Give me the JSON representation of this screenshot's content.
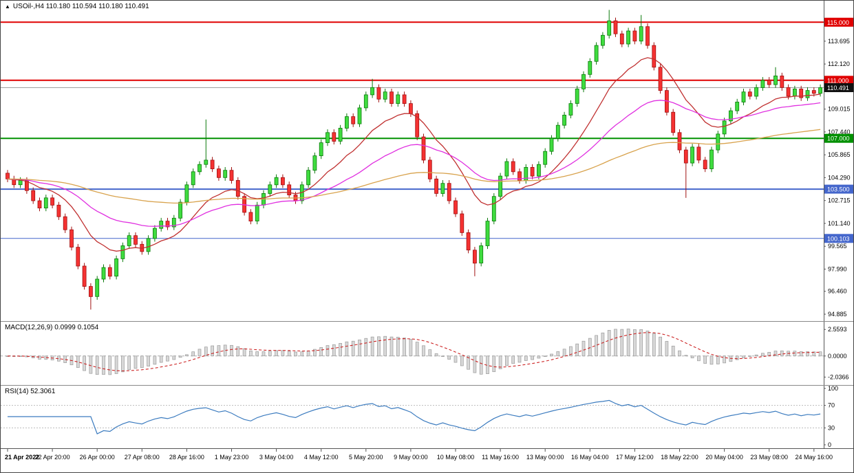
{
  "header": {
    "expander": "▲",
    "title_text": "USOil-,H4 110.180 110.594 110.180 110.491",
    "symbol": "USOil-",
    "timeframe": "H4",
    "open": "110.180",
    "high": "110.594",
    "low": "110.180",
    "close": "110.491"
  },
  "macd_panel": {
    "label_text": "MACD(12,26,9) 0.0999 0.1054",
    "ticks": [
      {
        "v": 2.5593,
        "t": "2.5593"
      },
      {
        "v": 0,
        "t": "0.0000"
      },
      {
        "v": -2.0366,
        "t": "-2.0366"
      }
    ],
    "ylim": [
      -2.6,
      3.1
    ]
  },
  "rsi_panel": {
    "label_text": "RSI(14) 52.3061",
    "ticks": [
      {
        "v": 100,
        "t": "100"
      },
      {
        "v": 70,
        "t": "70"
      },
      {
        "v": 30,
        "t": "30"
      },
      {
        "v": 0,
        "t": "0"
      }
    ],
    "levels": [
      70,
      30
    ],
    "ylim": [
      0,
      100
    ]
  },
  "chart_data": {
    "type": "candlestick",
    "symbol": "USOil-",
    "timeframe": "H4",
    "title": "USOil-,H4",
    "ylim": [
      94.6,
      116.2
    ],
    "first_open": 104.6,
    "closes": [
      104.2,
      103.8,
      104.1,
      103.4,
      102.7,
      102.2,
      102.9,
      102.4,
      101.6,
      100.7,
      99.5,
      98.2,
      96.8,
      96.1,
      97.3,
      98.1,
      97.5,
      98.7,
      99.6,
      100.3,
      99.7,
      99.2,
      100.1,
      100.8,
      101.3,
      100.9,
      101.5,
      102.6,
      103.8,
      104.7,
      105.2,
      105.5,
      104.9,
      104.3,
      104.8,
      104.1,
      103.0,
      101.9,
      101.3,
      102.4,
      103.2,
      103.8,
      104.3,
      103.8,
      103.1,
      102.7,
      103.8,
      104.8,
      105.8,
      106.7,
      107.4,
      106.8,
      107.7,
      108.5,
      108.0,
      109.1,
      110.0,
      110.5,
      109.7,
      110.2,
      109.4,
      110.0,
      109.4,
      108.7,
      107.1,
      105.5,
      104.2,
      103.2,
      103.9,
      102.7,
      101.8,
      100.5,
      99.3,
      98.4,
      99.6,
      101.3,
      103.0,
      104.4,
      105.4,
      104.7,
      104.1,
      105.0,
      104.4,
      105.2,
      106.1,
      107.0,
      107.9,
      108.6,
      109.4,
      110.4,
      111.4,
      112.3,
      113.4,
      114.1,
      115.1,
      114.2,
      113.5,
      114.4,
      113.7,
      114.7,
      113.4,
      111.9,
      110.3,
      108.8,
      107.4,
      106.2,
      105.3,
      106.4,
      105.5,
      104.9,
      106.2,
      107.3,
      108.2,
      108.9,
      109.5,
      110.2,
      109.9,
      110.5,
      111.0,
      110.7,
      111.3,
      110.5,
      109.9,
      110.4,
      109.8,
      110.3,
      110.1,
      110.491
    ],
    "wick_overrides": {
      "13": {
        "low": 95.2
      },
      "31": {
        "high": 108.3
      },
      "57": {
        "high": 111.1
      },
      "73": {
        "low": 97.5
      },
      "94": {
        "high": 115.85
      },
      "99": {
        "high": 115.5
      },
      "106": {
        "low": 102.9
      },
      "120": {
        "high": 111.9
      }
    },
    "axis_ticks": [
      {
        "v": 113.695,
        "t": "113.695"
      },
      {
        "v": 112.12,
        "t": "112.120"
      },
      {
        "v": 109.015,
        "t": "109.015"
      },
      {
        "v": 107.44,
        "t": "107.440"
      },
      {
        "v": 105.865,
        "t": "105.865"
      },
      {
        "v": 104.29,
        "t": "104.290"
      },
      {
        "v": 102.715,
        "t": "102.715"
      },
      {
        "v": 101.14,
        "t": "101.140"
      },
      {
        "v": 99.565,
        "t": "99.565"
      },
      {
        "v": 97.99,
        "t": "97.990"
      },
      {
        "v": 96.46,
        "t": "96.460"
      },
      {
        "v": 94.885,
        "t": "94.885"
      }
    ],
    "levels": [
      {
        "value": 115.0,
        "label": "115.000",
        "color": "#e00000",
        "width": 2
      },
      {
        "value": 111.0,
        "label": "111.000",
        "color": "#e00000",
        "width": 2
      },
      {
        "value": 107.0,
        "label": "107.000",
        "color": "#009000",
        "width": 2
      },
      {
        "value": 103.5,
        "label": "103.500",
        "color": "#4466cc",
        "width": 2
      },
      {
        "value": 100.103,
        "label": "100.103",
        "color": "#4466cc",
        "width": 1
      }
    ],
    "current_price": {
      "value": 110.491,
      "label": "110.491",
      "line_color": "#a0a0a0",
      "badge_bg": "#111111"
    },
    "moving_averages": [
      {
        "name": "ma-fast-line",
        "period": 13,
        "color": "#c03030"
      },
      {
        "name": "ma-medium-line",
        "period": 34,
        "color": "#e030e0"
      },
      {
        "name": "ma-slow-line",
        "period": 96,
        "color": "#d8a24c"
      }
    ],
    "macd": {
      "fast": 12,
      "slow": 26,
      "signal": 9,
      "histogram_color": "#d8d8d8",
      "histogram_stroke": "#9a9a9a",
      "signal_color": "#cc2222"
    },
    "rsi": {
      "period": 14,
      "color": "#3b7bbf",
      "level_color": "#bbbbbb"
    },
    "bull_color": "#3fdc3f",
    "bull_stroke": "#0a7a0a",
    "bear_color": "#f53232",
    "bear_stroke": "#a01010",
    "candles_per_label": 7,
    "x_labels": [
      "21 Apr 2022",
      "22 Apr 20:00",
      "26 Apr 00:00",
      "27 Apr 08:00",
      "28 Apr 16:00",
      "1 May 23:00",
      "3 May 04:00",
      "4 May 12:00",
      "5 May 20:00",
      "9 May 00:00",
      "10 May 08:00",
      "11 May 16:00",
      "13 May 00:00",
      "16 May 04:00",
      "17 May 12:00",
      "18 May 22:00",
      "20 May 04:00",
      "23 May 08:00",
      "24 May 16:00"
    ]
  }
}
